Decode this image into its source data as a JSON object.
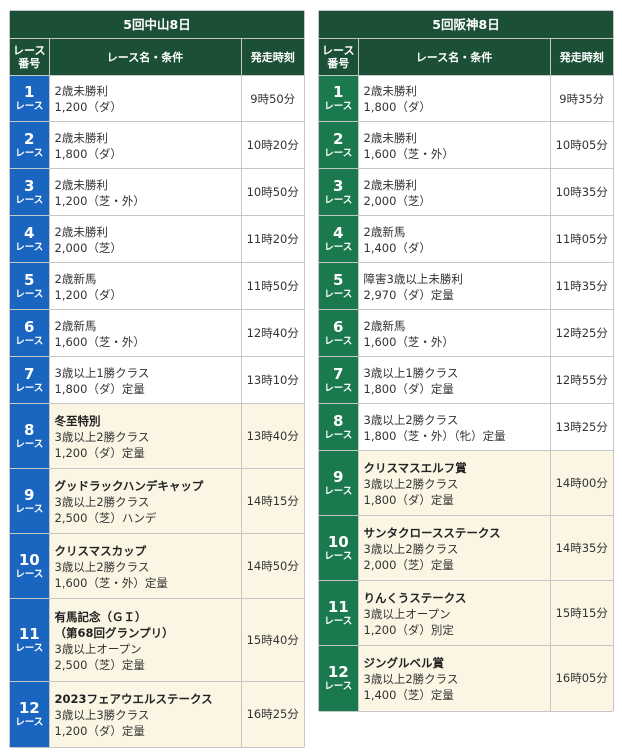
{
  "header": {
    "race_no": "レース\n番号",
    "race_name": "レース名・条件",
    "post_time": "発走時刻"
  },
  "race_unit": "レース",
  "venues": [
    {
      "title": "5回中山8日",
      "races": [
        {
          "no": "1",
          "name": "",
          "lines": [
            "2歳未勝利",
            "1,200（ダ）"
          ],
          "time": "9時50分",
          "h": 46
        },
        {
          "no": "2",
          "name": "",
          "lines": [
            "2歳未勝利",
            "1,800（ダ）"
          ],
          "time": "10時20分",
          "h": 47
        },
        {
          "no": "3",
          "name": "",
          "lines": [
            "2歳未勝利",
            "1,200（芝・外）"
          ],
          "time": "10時50分",
          "h": 47
        },
        {
          "no": "4",
          "name": "",
          "lines": [
            "2歳未勝利",
            "2,000（芝）"
          ],
          "time": "11時20分",
          "h": 47
        },
        {
          "no": "5",
          "name": "",
          "lines": [
            "2歳新馬",
            "1,200（ダ）"
          ],
          "time": "11時50分",
          "h": 47
        },
        {
          "no": "6",
          "name": "",
          "lines": [
            "2歳新馬",
            "1,600（芝・外）"
          ],
          "time": "12時40分",
          "h": 47
        },
        {
          "no": "7",
          "name": "",
          "lines": [
            "3歳以上1勝クラス",
            "1,800（ダ）定量"
          ],
          "time": "13時10分",
          "h": 47
        },
        {
          "no": "8",
          "name": "冬至特別",
          "lines": [
            "3歳以上2勝クラス",
            "1,200（ダ）定量"
          ],
          "time": "13時40分",
          "h": 65
        },
        {
          "no": "9",
          "name": "グッドラックハンデキャップ",
          "lines": [
            "3歳以上2勝クラス",
            "2,500（芝）ハンデ"
          ],
          "time": "14時15分",
          "h": 65
        },
        {
          "no": "10",
          "name": "クリスマスカップ",
          "lines": [
            "3歳以上2勝クラス",
            "1,600（芝・外）定量"
          ],
          "time": "14時50分",
          "h": 65
        },
        {
          "no": "11",
          "name": "有馬記念（ＧＩ）\n（第68回グランプリ）",
          "lines": [
            "3歳以上オープン",
            "2,500（芝）定量"
          ],
          "time": "15時40分",
          "h": 83
        },
        {
          "no": "12",
          "name": "2023フェアウエルステークス",
          "lines": [
            "3歳以上3勝クラス",
            "1,200（ダ）定量"
          ],
          "time": "16時25分",
          "h": 65
        }
      ]
    },
    {
      "title": "5回阪神8日",
      "races": [
        {
          "no": "1",
          "name": "",
          "lines": [
            "2歳未勝利",
            "1,800（ダ）"
          ],
          "time": "9時35分",
          "h": 46
        },
        {
          "no": "2",
          "name": "",
          "lines": [
            "2歳未勝利",
            "1,600（芝・外）"
          ],
          "time": "10時05分",
          "h": 47
        },
        {
          "no": "3",
          "name": "",
          "lines": [
            "2歳未勝利",
            "2,000（芝）"
          ],
          "time": "10時35分",
          "h": 47
        },
        {
          "no": "4",
          "name": "",
          "lines": [
            "2歳新馬",
            "1,400（ダ）"
          ],
          "time": "11時05分",
          "h": 47
        },
        {
          "no": "5",
          "name": "",
          "lines": [
            "障害3歳以上未勝利",
            "2,970（ダ）定量"
          ],
          "time": "11時35分",
          "h": 47
        },
        {
          "no": "6",
          "name": "",
          "lines": [
            "2歳新馬",
            "1,600（芝・外）"
          ],
          "time": "12時25分",
          "h": 47
        },
        {
          "no": "7",
          "name": "",
          "lines": [
            "3歳以上1勝クラス",
            "1,800（ダ）定量"
          ],
          "time": "12時55分",
          "h": 47
        },
        {
          "no": "8",
          "name": "",
          "lines": [
            "3歳以上2勝クラス",
            "1,800（芝・外）（牝）定量"
          ],
          "time": "13時25分",
          "h": 47
        },
        {
          "no": "9",
          "name": "クリスマスエルフ賞",
          "lines": [
            "3歳以上2勝クラス",
            "1,800（ダ）定量"
          ],
          "time": "14時00分",
          "h": 65
        },
        {
          "no": "10",
          "name": "サンタクロースステークス",
          "lines": [
            "3歳以上2勝クラス",
            "2,000（芝）定量"
          ],
          "time": "14時35分",
          "h": 65
        },
        {
          "no": "11",
          "name": "りんくうステークス",
          "lines": [
            "3歳以上オープン",
            "1,200（ダ）別定"
          ],
          "time": "15時15分",
          "h": 65
        },
        {
          "no": "12",
          "name": "ジングルベル賞",
          "lines": [
            "3歳以上2勝クラス",
            "1,400（芝）定量"
          ],
          "time": "16時05分",
          "h": 65
        }
      ]
    }
  ]
}
